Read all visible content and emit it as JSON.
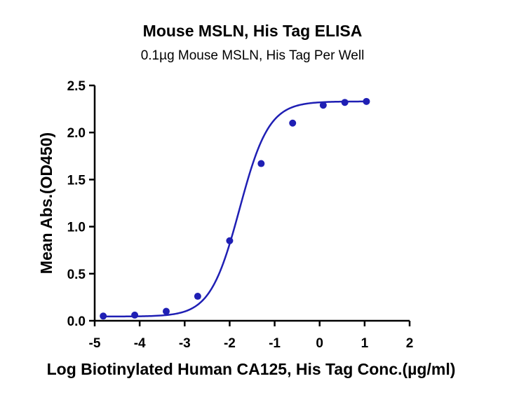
{
  "chart_data": {
    "type": "scatter",
    "title": "Mouse MSLN, His Tag ELISA",
    "subtitle": "0.1µg Mouse MSLN, His Tag Per Well",
    "xlabel": "Log Biotinylated Human CA125, His Tag Conc.(µg/ml)",
    "ylabel": "Mean Abs.(OD450)",
    "xlim": [
      -5,
      2
    ],
    "ylim": [
      0.0,
      2.5
    ],
    "xticks": [
      "-5",
      "-4",
      "-3",
      "-2",
      "-1",
      "0",
      "1",
      "2"
    ],
    "yticks": [
      "0.0",
      "0.5",
      "1.0",
      "1.5",
      "2.0",
      "2.5"
    ],
    "grid": false,
    "series": [
      {
        "x": [
          -4.81,
          -4.11,
          -3.41,
          -2.71,
          -2.0,
          -1.3,
          -0.6,
          0.08,
          0.56,
          1.04
        ],
        "y": [
          0.05,
          0.06,
          0.1,
          0.26,
          0.85,
          1.67,
          2.1,
          2.29,
          2.32,
          2.33
        ],
        "fit": "sigmoidal"
      }
    ],
    "colors": {
      "series": "#1f1fb4",
      "axis": "#000000"
    }
  }
}
